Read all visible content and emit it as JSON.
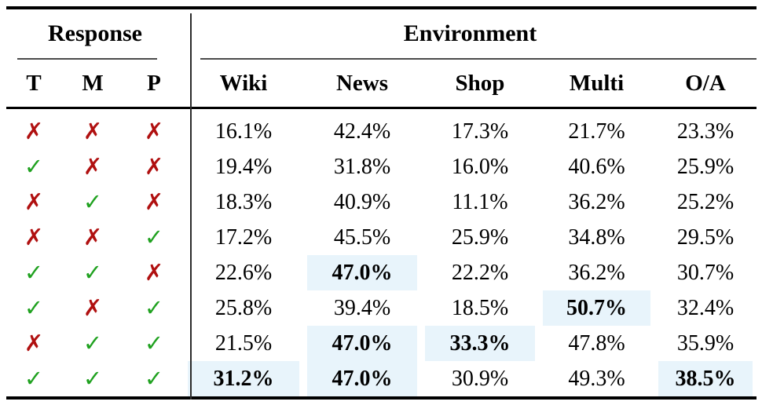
{
  "table": {
    "group_headers": {
      "response": "Response",
      "environment": "Environment"
    },
    "response_columns": [
      "T",
      "M",
      "P"
    ],
    "environment_columns": [
      "Wiki",
      "News",
      "Shop",
      "Multi",
      "O/A"
    ],
    "marks_legend": {
      "check": "✓",
      "cross": "✗"
    },
    "colors": {
      "check_green": "#1FA11F",
      "cross_red": "#B01010",
      "highlight_blue": "#E8F4FB"
    },
    "rows": [
      {
        "marks": [
          "cross",
          "cross",
          "cross"
        ],
        "values": [
          "16.1%",
          "42.4%",
          "17.3%",
          "21.7%",
          "23.3%"
        ],
        "highlights": [
          false,
          false,
          false,
          false,
          false
        ]
      },
      {
        "marks": [
          "check",
          "cross",
          "cross"
        ],
        "values": [
          "19.4%",
          "31.8%",
          "16.0%",
          "40.6%",
          "25.9%"
        ],
        "highlights": [
          false,
          false,
          false,
          false,
          false
        ]
      },
      {
        "marks": [
          "cross",
          "check",
          "cross"
        ],
        "values": [
          "18.3%",
          "40.9%",
          "11.1%",
          "36.2%",
          "25.2%"
        ],
        "highlights": [
          false,
          false,
          false,
          false,
          false
        ]
      },
      {
        "marks": [
          "cross",
          "cross",
          "check"
        ],
        "values": [
          "17.2%",
          "45.5%",
          "25.9%",
          "34.8%",
          "29.5%"
        ],
        "highlights": [
          false,
          false,
          false,
          false,
          false
        ]
      },
      {
        "marks": [
          "check",
          "check",
          "cross"
        ],
        "values": [
          "22.6%",
          "47.0%",
          "22.2%",
          "36.2%",
          "30.7%"
        ],
        "highlights": [
          false,
          true,
          false,
          false,
          false
        ]
      },
      {
        "marks": [
          "check",
          "cross",
          "check"
        ],
        "values": [
          "25.8%",
          "39.4%",
          "18.5%",
          "50.7%",
          "32.4%"
        ],
        "highlights": [
          false,
          false,
          false,
          true,
          false
        ]
      },
      {
        "marks": [
          "cross",
          "check",
          "check"
        ],
        "values": [
          "21.5%",
          "47.0%",
          "33.3%",
          "47.8%",
          "35.9%"
        ],
        "highlights": [
          false,
          true,
          true,
          false,
          false
        ]
      },
      {
        "marks": [
          "check",
          "check",
          "check"
        ],
        "values": [
          "31.2%",
          "47.0%",
          "30.9%",
          "49.3%",
          "38.5%"
        ],
        "highlights": [
          true,
          true,
          false,
          false,
          true
        ]
      }
    ]
  }
}
